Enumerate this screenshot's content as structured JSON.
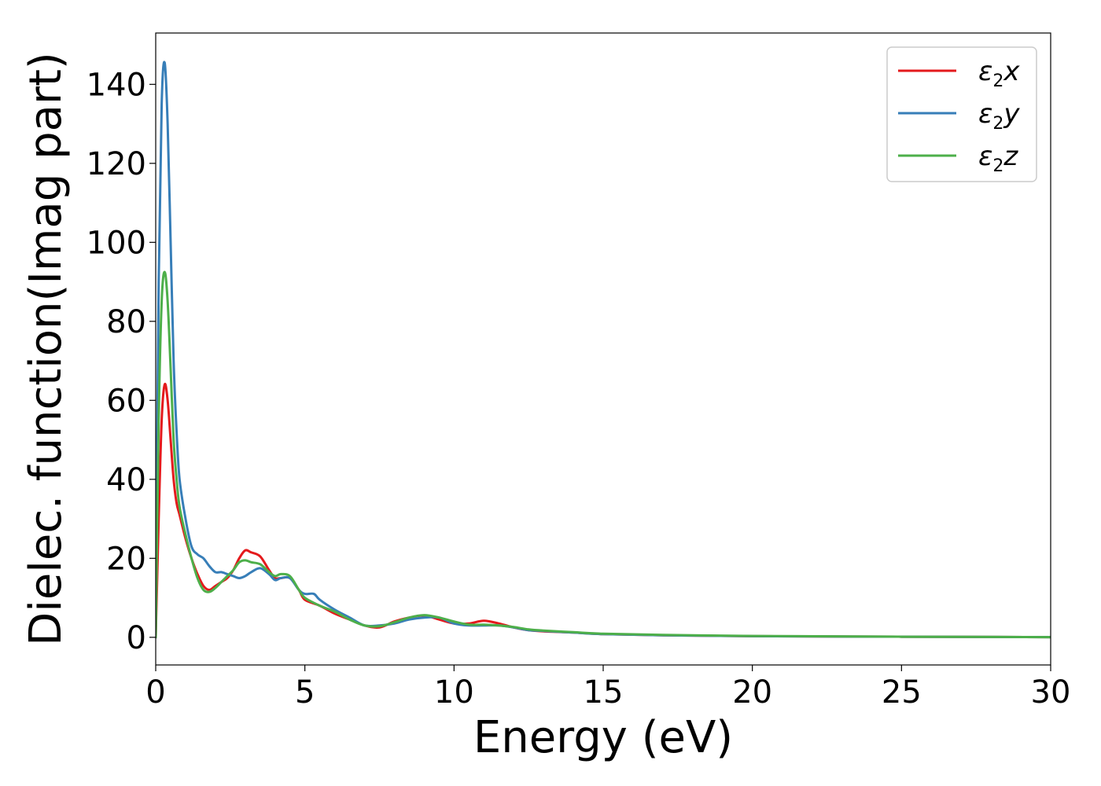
{
  "chart_data": {
    "type": "line",
    "title": "",
    "xlabel": "Energy (eV)",
    "ylabel": "Dielec. function(Imag part)",
    "xlim": [
      0,
      30
    ],
    "ylim": [
      -7,
      153
    ],
    "xticks": [
      0,
      5,
      10,
      15,
      20,
      25,
      30
    ],
    "yticks": [
      0,
      20,
      40,
      60,
      80,
      100,
      120,
      140
    ],
    "grid": false,
    "legend_position": "top-right",
    "series": [
      {
        "name": "ε2x",
        "legend": {
          "base": "ε",
          "sub": "2",
          "suffix": "x"
        },
        "color": "#e41a1c",
        "x": [
          0,
          0.1,
          0.2,
          0.3,
          0.4,
          0.5,
          0.6,
          0.7,
          0.8,
          1.0,
          1.2,
          1.4,
          1.6,
          1.8,
          2.0,
          2.2,
          2.4,
          2.6,
          2.8,
          3.0,
          3.2,
          3.5,
          3.8,
          4.0,
          4.2,
          4.5,
          4.8,
          5.0,
          5.5,
          6.0,
          6.5,
          7.0,
          7.5,
          8.0,
          8.5,
          9.0,
          9.5,
          10.0,
          10.5,
          11.0,
          11.5,
          12.0,
          12.5,
          13.0,
          14.0,
          15.0,
          17.0,
          20.0,
          25.0,
          30.0
        ],
        "values": [
          0,
          30,
          55,
          64,
          60,
          50,
          40,
          34,
          31,
          25,
          20,
          16,
          13,
          12,
          13,
          14,
          15,
          17,
          20,
          22,
          21.5,
          20.5,
          17,
          15,
          15,
          15,
          12,
          9.5,
          8,
          6,
          4.5,
          3,
          2.5,
          4,
          5,
          5.5,
          4.5,
          3.5,
          3.5,
          4.2,
          3.5,
          2.5,
          1.8,
          1.5,
          1.2,
          0.8,
          0.5,
          0.3,
          0.15,
          0.05
        ]
      },
      {
        "name": "ε2y",
        "legend": {
          "base": "ε",
          "sub": "2",
          "suffix": "y"
        },
        "color": "#377eb8",
        "x": [
          0,
          0.1,
          0.2,
          0.3,
          0.4,
          0.5,
          0.6,
          0.7,
          0.8,
          1.0,
          1.2,
          1.4,
          1.6,
          1.8,
          2.0,
          2.2,
          2.4,
          2.6,
          2.8,
          3.0,
          3.2,
          3.5,
          3.8,
          4.0,
          4.2,
          4.5,
          4.8,
          5.0,
          5.3,
          5.5,
          6.0,
          6.5,
          7.0,
          7.5,
          8.0,
          8.5,
          9.0,
          9.5,
          10.0,
          10.5,
          11.0,
          11.5,
          12.0,
          12.5,
          13.0,
          14.0,
          15.0,
          17.0,
          20.0,
          25.0,
          30.0
        ],
        "values": [
          0,
          90,
          135,
          145.5,
          130,
          100,
          70,
          52,
          40,
          30,
          23,
          21,
          20,
          18,
          16.5,
          16.5,
          16,
          15.5,
          15,
          15.5,
          16.5,
          17.5,
          16,
          14.5,
          15,
          15,
          12,
          11,
          11,
          9.5,
          7,
          5,
          3,
          3,
          3.5,
          4.5,
          5,
          5,
          3.5,
          3,
          3,
          3,
          2.5,
          1.8,
          1.6,
          1.2,
          0.8,
          0.5,
          0.3,
          0.15,
          0.05
        ]
      },
      {
        "name": "ε2z",
        "legend": {
          "base": "ε",
          "sub": "2",
          "suffix": "z"
        },
        "color": "#4daf4a",
        "x": [
          0,
          0.1,
          0.2,
          0.3,
          0.4,
          0.5,
          0.6,
          0.7,
          0.8,
          1.0,
          1.2,
          1.4,
          1.6,
          1.8,
          2.0,
          2.2,
          2.4,
          2.6,
          2.8,
          3.0,
          3.2,
          3.5,
          3.8,
          4.0,
          4.2,
          4.5,
          4.8,
          5.0,
          5.5,
          6.0,
          6.5,
          7.0,
          7.5,
          8.0,
          8.5,
          9.0,
          9.5,
          10.0,
          10.5,
          11.0,
          11.5,
          12.0,
          12.5,
          13.0,
          14.0,
          15.0,
          17.0,
          20.0,
          25.0,
          30.0
        ],
        "values": [
          0,
          55,
          85,
          92.5,
          85,
          68,
          50,
          40,
          33,
          26,
          20,
          15,
          12,
          11.5,
          12.5,
          14,
          15.5,
          17,
          19,
          19.5,
          19,
          18.5,
          16.5,
          15.5,
          16,
          15.5,
          12,
          10,
          8,
          6.5,
          4.5,
          3,
          2.8,
          3.8,
          5,
          5.6,
          5,
          4,
          3.2,
          3.2,
          3,
          2.6,
          2,
          1.7,
          1.3,
          0.9,
          0.6,
          0.35,
          0.15,
          0.05
        ]
      }
    ]
  }
}
